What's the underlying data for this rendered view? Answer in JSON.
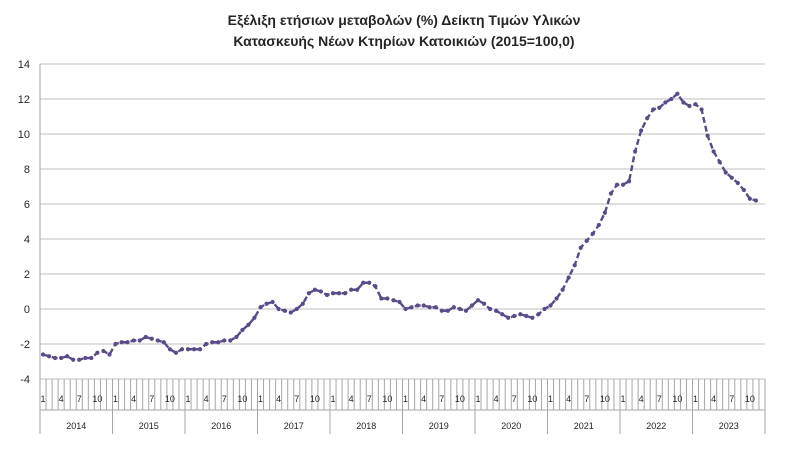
{
  "title_line1": "Εξέλιξη ετήσιων μεταβολών (%) Δείκτη Τιμών Υλικών",
  "title_line2": "Κατασκευής Νέων Κτηρίων Κατοικιών (2015=100,0)",
  "colors": {
    "line": "#5a4a8a",
    "grid": "#bfbfbf",
    "axis": "#a6a6a6"
  },
  "chart_data": {
    "type": "line",
    "title": "Εξέλιξη ετήσιων μεταβολών (%) Δείκτη Τιμών Υλικών Κατασκευής Νέων Κτηρίων Κατοικιών (2015=100,0)",
    "xlabel": "",
    "ylabel": "",
    "ylim": [
      -4,
      14
    ],
    "yticks": [
      "-4",
      "-2",
      "0",
      "2",
      "4",
      "6",
      "8",
      "10",
      "12",
      "14"
    ],
    "grid": true,
    "legend": "none",
    "line_style": "dashed with dot markers",
    "month_tick_labels": [
      "1",
      "4",
      "7",
      "10"
    ],
    "years": [
      "2014",
      "2015",
      "2016",
      "2017",
      "2018",
      "2019",
      "2020",
      "2021",
      "2022",
      "2023"
    ],
    "series": [
      {
        "values": [
          -2.6,
          -2.7,
          -2.8,
          -2.8,
          -2.7,
          -2.9,
          -2.9,
          -2.8,
          -2.8,
          -2.5,
          -2.4,
          -2.6,
          -2.0,
          -1.9,
          -1.9,
          -1.8,
          -1.8,
          -1.6,
          -1.7,
          -1.8,
          -1.9,
          -2.3,
          -2.5,
          -2.3,
          -2.3,
          -2.3,
          -2.3,
          -2.0,
          -1.9,
          -1.9,
          -1.8,
          -1.8,
          -1.6,
          -1.2,
          -0.9,
          -0.5,
          0.1,
          0.3,
          0.4,
          0.0,
          -0.1,
          -0.2,
          0.0,
          0.3,
          0.9,
          1.1,
          1.0,
          0.8,
          0.9,
          0.9,
          0.9,
          1.1,
          1.1,
          1.5,
          1.5,
          1.3,
          0.6,
          0.6,
          0.5,
          0.4,
          0.0,
          0.1,
          0.2,
          0.2,
          0.1,
          0.1,
          -0.1,
          -0.1,
          0.1,
          0.0,
          -0.1,
          0.2,
          0.5,
          0.3,
          0.0,
          -0.1,
          -0.3,
          -0.5,
          -0.4,
          -0.3,
          -0.4,
          -0.5,
          -0.3,
          0.0,
          0.2,
          0.6,
          1.1,
          1.8,
          2.5,
          3.5,
          3.9,
          4.3,
          4.8,
          5.5,
          6.6,
          7.1,
          7.1,
          7.3,
          9.0,
          10.2,
          10.9,
          11.4,
          11.5,
          11.8,
          12.0,
          12.3,
          11.8,
          11.6,
          11.7,
          11.4,
          9.9,
          9.0,
          8.4,
          7.8,
          7.5,
          7.2,
          6.8,
          6.3,
          6.2
        ]
      }
    ]
  }
}
